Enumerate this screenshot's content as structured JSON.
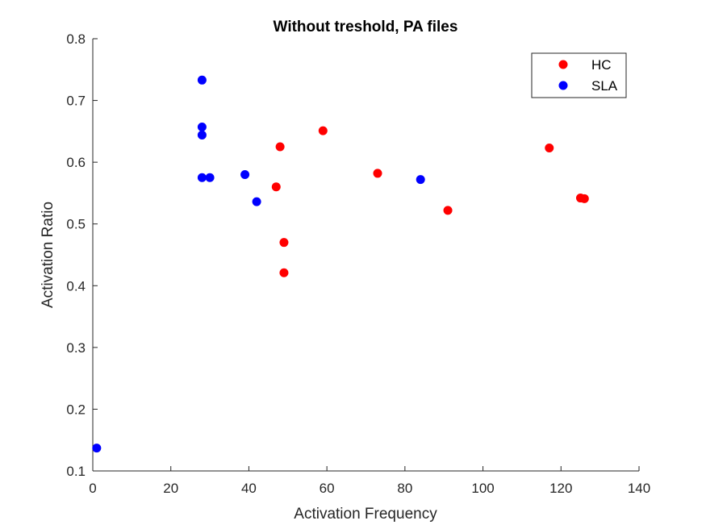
{
  "chart_data": {
    "type": "scatter",
    "title": "Without treshold, PA files",
    "xlabel": "Activation Frequency",
    "ylabel": "Activation Ratio",
    "xlim": [
      0,
      140
    ],
    "ylim": [
      0.1,
      0.8
    ],
    "xticks": [
      0,
      20,
      40,
      60,
      80,
      100,
      120,
      140
    ],
    "xtick_labels": [
      "0",
      "20",
      "40",
      "60",
      "80",
      "100",
      "120",
      "140"
    ],
    "yticks": [
      0.1,
      0.2,
      0.3,
      0.4,
      0.5,
      0.6,
      0.7,
      0.8
    ],
    "ytick_labels": [
      "0.1",
      "0.2",
      "0.3",
      "0.4",
      "0.5",
      "0.6",
      "0.7",
      "0.8"
    ],
    "grid": false,
    "legend_position": "top-right",
    "series": [
      {
        "name": "HC",
        "color": "#ff0000",
        "x": [
          47,
          48,
          49,
          49,
          59,
          73,
          91,
          117,
          125,
          126
        ],
        "y": [
          0.56,
          0.625,
          0.47,
          0.421,
          0.651,
          0.582,
          0.522,
          0.623,
          0.542,
          0.541
        ]
      },
      {
        "name": "SLA",
        "color": "#0000ff",
        "x": [
          1,
          28,
          28,
          28,
          28,
          30,
          39,
          42,
          84
        ],
        "y": [
          0.137,
          0.733,
          0.657,
          0.644,
          0.575,
          0.575,
          0.58,
          0.536,
          0.572
        ]
      }
    ]
  }
}
